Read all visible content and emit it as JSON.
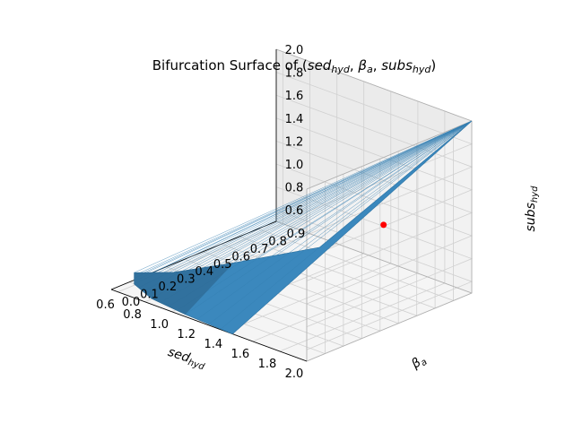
{
  "chart_data": {
    "type": "surface3d",
    "title": "Bifurcation Surface of $(sed_{hyd}, \\beta_a, subs_{hyd})$",
    "title_parts": [
      "Bifurcation Surface of (",
      "sed",
      "hyd",
      ", ",
      "β",
      "a",
      ", ",
      "subs",
      "hyd",
      ")"
    ],
    "x_axis": {
      "label": "sed_hyd",
      "label_main": "sed",
      "label_sub": "hyd",
      "range": [
        0.55,
        2.0
      ],
      "ticks": [
        "0.6",
        "0.8",
        "1.0",
        "1.2",
        "1.4",
        "1.6",
        "1.8",
        "2.0"
      ]
    },
    "y_axis": {
      "label": "β_a",
      "label_main": "β",
      "label_sub": "a",
      "range": [
        0.0,
        0.9
      ],
      "ticks": [
        "0.0",
        "0.1",
        "0.2",
        "0.3",
        "0.4",
        "0.5",
        "0.6",
        "0.7",
        "0.8",
        "0.9"
      ]
    },
    "z_axis": {
      "label": "subs_hyd",
      "label_main": "subs",
      "label_sub": "hyd",
      "range": [
        0.5,
        2.0
      ],
      "ticks": [
        "0.6",
        "0.8",
        "1.0",
        "1.2",
        "1.4",
        "1.6",
        "1.8",
        "2.0"
      ]
    },
    "surface": {
      "name": "bifurcation surface",
      "color": "#3b88bd",
      "edge_color": "#2d6f9c",
      "apex": {
        "sed_hyd": 2.0,
        "beta_a": 0.9,
        "subs_hyd": 2.0
      },
      "lower_edge": [
        {
          "sed_hyd": 1.35,
          "beta_a": 0.55,
          "subs_hyd": 0.85
        },
        {
          "sed_hyd": 1.05,
          "beta_a": 0.3,
          "subs_hyd": 0.75
        },
        {
          "sed_hyd": 0.85,
          "beta_a": 0.12,
          "subs_hyd": 0.7
        },
        {
          "sed_hyd": 0.72,
          "beta_a": 0.0,
          "subs_hyd": 0.72
        },
        {
          "sed_hyd": 0.72,
          "beta_a": 0.0,
          "subs_hyd": 0.62
        },
        {
          "sed_hyd": 0.85,
          "beta_a": 0.0,
          "subs_hyd": 0.55
        },
        {
          "sed_hyd": 1.1,
          "beta_a": 0.0,
          "subs_hyd": 0.52
        },
        {
          "sed_hyd": 1.45,
          "beta_a": 0.0,
          "subs_hyd": 0.5
        }
      ]
    },
    "points": [
      {
        "name": "equilibrium",
        "sed_hyd": 1.55,
        "beta_a": 0.75,
        "subs_hyd": 1.0,
        "color": "#ff0000"
      }
    ],
    "grid": true,
    "pane_color": "#f2f2f2",
    "grid_color": "#d0d0d0"
  }
}
